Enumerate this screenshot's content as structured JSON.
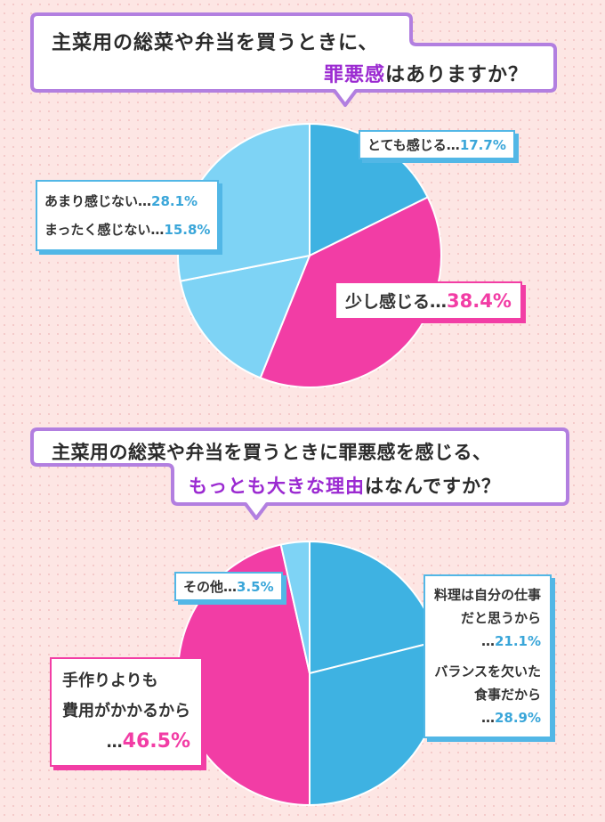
{
  "question1": {
    "line1": "主菜用の総菜や弁当を買うときに、",
    "line2_accent": "罪悪感",
    "line2_rest": "はありますか？"
  },
  "question2": {
    "line1": "主菜用の総菜や弁当を買うときに罪悪感を感じる、",
    "line2_accent": "もっとも大きな理由",
    "line2_rest": "はなんですか？"
  },
  "labels1": {
    "very": {
      "text": "とても感じる…",
      "pct": "17.7%"
    },
    "not_much": {
      "text": "あまり感じない…",
      "pct": "28.1%"
    },
    "not_at_all": {
      "text": "まったく感じない…",
      "pct": "15.8%"
    },
    "little": {
      "text": "少し感じる…",
      "pct": "38.4%"
    }
  },
  "labels2": {
    "other": {
      "text": "その他…",
      "pct": "3.5%"
    },
    "cooking": {
      "line1": "料理は自分の仕事",
      "line2": "だと思うから",
      "line3": "…",
      "pct": "21.1%"
    },
    "balance": {
      "line1": "バランスを欠いた",
      "line2": "食事だから",
      "line3": "…",
      "pct": "28.9%"
    },
    "cost": {
      "line1": "手作りよりも",
      "line2": "費用がかかるから",
      "line3": "…",
      "pct": "46.5%"
    }
  },
  "colors": {
    "blue_dark": "#3eb2e2",
    "blue_light": "#7ed3f5",
    "pink": "#f23da5",
    "purple": "#b27fe0",
    "accent_text": "#9b2ad1"
  },
  "chart_data": [
    {
      "type": "pie",
      "categories": [
        "とても感じる",
        "少し感じる",
        "まったく感じない",
        "あまり感じない"
      ],
      "values": [
        17.7,
        38.4,
        15.8,
        28.1
      ],
      "colors": [
        "#3eb2e2",
        "#f23da5",
        "#7ed3f5",
        "#7ed3f5"
      ]
    },
    {
      "type": "pie",
      "categories": [
        "料理は自分の仕事だと思うから",
        "バランスを欠いた食事だから",
        "手作りよりも費用がかかるから",
        "その他"
      ],
      "values": [
        21.1,
        28.9,
        46.5,
        3.5
      ],
      "colors": [
        "#3eb2e2",
        "#3eb2e2",
        "#f23da5",
        "#7ed3f5"
      ]
    }
  ]
}
